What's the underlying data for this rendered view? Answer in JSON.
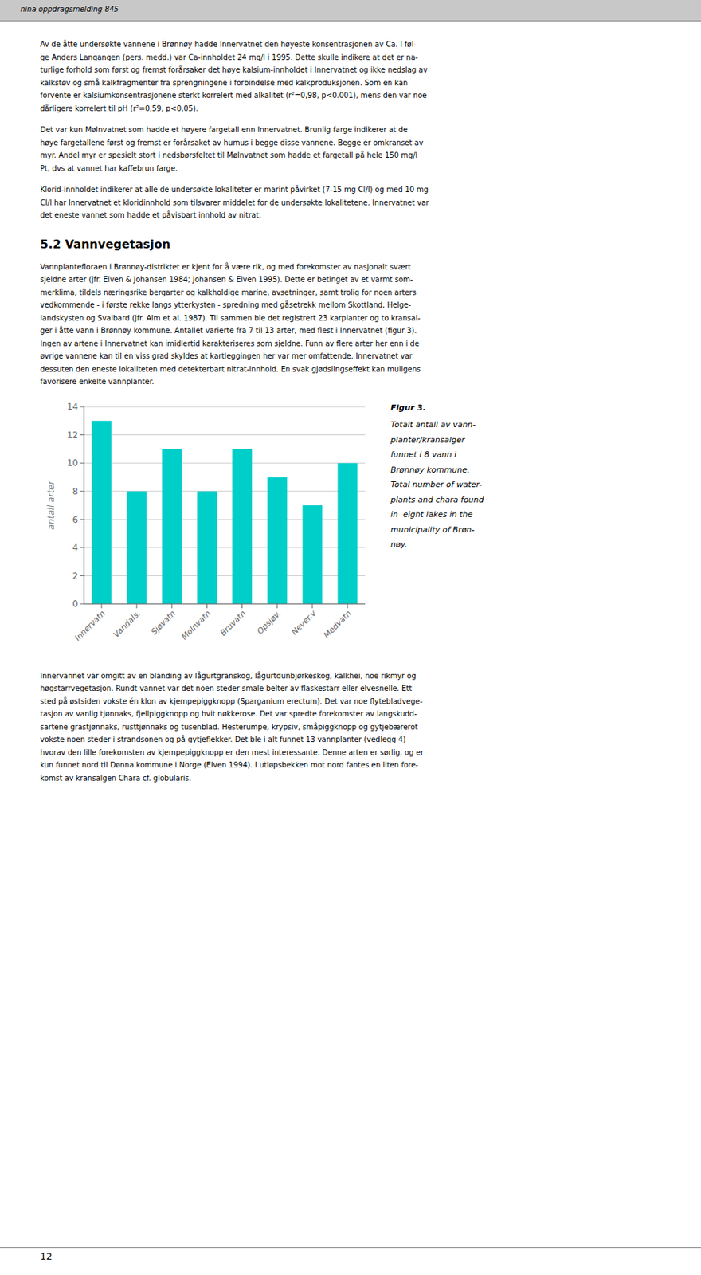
{
  "header_text": "nina oppdragsmelding 845",
  "footer_text": "12",
  "section_header": "5.2 Vannvegetasjon",
  "body_text_before": [
    [
      "Av de åtte undersøkte vannene i Brønnøy hadde Innervatnet den høyeste konsentrasjonen av Ca. I føl-",
      "ge Anders Langangen (pers. medd.) var Ca-innholdet 24 mg/l i 1995. Dette skulle indikere at det er na-",
      "turlige forhold som først og fremst forårsaker det høye kalsium-innholdet i Innervatnet og ikke nedslag av",
      "kalkstøv og små kalkfragmenter fra sprengningene i forbindelse med kalkproduksjonen. Som en kan",
      "forvente er kalsiumkonsentrasjonene sterkt korrelert med alkalitet (r²=0,98, p<0.001), mens den var noe",
      "dårligere korrelert til pH (r²=0,59, p<0,05)."
    ],
    [
      "Det var kun Mølnvatnet som hadde et høyere fargetall enn Innervatnet. Brunlig farge indikerer at de",
      "høye fargetallene først og fremst er forårsaket av humus i begge disse vannene. Begge er omkranset av",
      "myr. Andel myr er spesielt stort i nedsbørsfeltet til Mølnvatnet som hadde et fargetall på hele 150 mg/l",
      "Pt, dvs at vannet har kaffebrun farge."
    ],
    [
      "Klorid-innholdet indikerer at alle de undersøkte lokaliteter er marint påvirket (7-15 mg Cl/l) og med 10 mg",
      "Cl/l har Innervatnet et kloridinnhold som tilsvarer middelet for de undersøkte lokalitetene. Innervatnet var",
      "det eneste vannet som hadde et påvisbart innhold av nitrat."
    ]
  ],
  "body_text_after_header": [
    "Vannplantefloraen i Brønnøy-distriktet er kjent for å være rik, og med forekomster av nasjonalt svært",
    "sjeldne arter (jfr. Elven & Johansen 1984; Johansen & Elven 1995). Dette er betinget av et varmt som-",
    "merklima, tildels næringsrike bergarter og kalkholdige marine, avsetninger, samt trolig for noen arters",
    "vedkommende - i første rekke langs ytterkysten - spredning med gåsetrekk mellom Skottland, Helge-",
    "landskysten og Svalbard (jfr. Alm et al. 1987). Til sammen ble det registrert 23 karplanter og to kransal-",
    "ger i åtte vann i Brønnøy kommune. Antallet varierte fra 7 til 13 arter, med flest i Innervatnet (figur 3).",
    "Ingen av artene i Innervatnet kan imidlertid karakteriseres som sjeldne. Funn av flere arter her enn i de",
    "øvrige vannene kan til en viss grad skyldes at kartleggingen her var mer omfattende. Innervatnet var",
    "dessuten den eneste lokaliteten med detekterbart nitrat-innhold. En svak gjødslingseffekt kan muligens",
    "favorisere enkelte vannplanter."
  ],
  "body_text_after_chart": [
    "Innervannet var omgitt av en blanding av lågurtgranskog, lågurtdunbjørkeskog, kalkhei, noe rikmyr og",
    "høgstarrvegetasjon. Rundt vannet var det noen steder smale belter av flaskestarr eller elvesnelle. Ett",
    "sted på østsiden vokste én klon av kjempepiggknopp (Sparganium erectum). Det var noe flytebladvege-",
    "tasjon av vanlig tjønnaks, fjellpiggknopp og hvit nøkkerose. Det var spredte forekomster av langskudd-",
    "sartene grastjønnaks, rusttjønnaks og tusenblad. Hesterumpe, krypsiv, småpiggknopp og gytjebærerot",
    "vokste noen steder i strandsonen og på gytjeflekker. Det ble i alt funnet 13 vannplanter (vedlegg 4)",
    "hvorav den lille forekomsten av kjempepiggknopp er den mest interessante. Denne arten er sørlig, og er",
    "kun funnet nord til Dønna kommune i Norge (Elven 1994). I utløpsbekken mot nord fantes en liten fore-",
    "komst av kransalgen Chara cf. globularis."
  ],
  "chart_data": {
    "type": "bar",
    "categories": [
      "Innervatn",
      "Vandals.",
      "Sjøvatn",
      "Mølnvatn",
      "Bruvatn",
      "Opsjøv.",
      "Never.v",
      "Medvatn"
    ],
    "values": [
      13,
      8,
      11,
      8,
      11,
      9,
      7,
      10
    ],
    "color": "#00CEC9",
    "ylabel": "antall arter",
    "ylim": [
      0,
      14
    ],
    "yticks": [
      0,
      2,
      4,
      6,
      8,
      10,
      12,
      14
    ],
    "grid": true,
    "figure_label": "Figur 3.",
    "figure_caption_lines": [
      "Totalt antall av vann-",
      "planter/kransalger",
      "funnet i 8 vann i",
      "Brønnøy kommune.",
      "Total number of water-",
      "plants and chara found",
      "in  eight lakes in the",
      "municipality of Brøn-",
      "nøy."
    ]
  }
}
